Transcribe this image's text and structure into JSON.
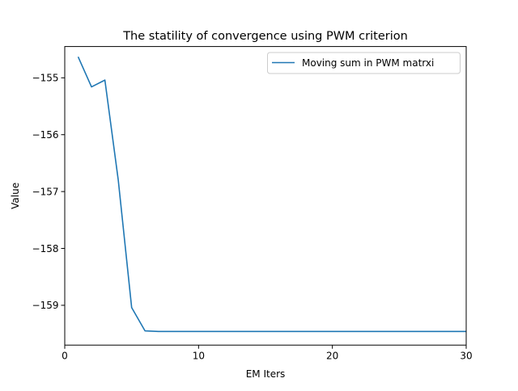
{
  "chart_data": {
    "type": "line",
    "title": "The statility of convergence using PWM criterion",
    "xlabel": "EM Iters",
    "ylabel": "Value",
    "xlim": [
      0,
      30
    ],
    "ylim": [
      -159.7,
      -154.45
    ],
    "xticks": [
      0,
      10,
      20,
      30
    ],
    "yticks": [
      -155,
      -156,
      -157,
      -158,
      -159
    ],
    "ytick_labels": [
      "−155",
      "−156",
      "−157",
      "−158",
      "−159"
    ],
    "grid": false,
    "legend_position": "top-right",
    "series": [
      {
        "name": "Moving sum in PWM matrxi",
        "color": "#1f77b4",
        "x": [
          1,
          2,
          3,
          4,
          5,
          6,
          7,
          8,
          9,
          10,
          11,
          12,
          13,
          14,
          15,
          16,
          17,
          18,
          19,
          20,
          21,
          22,
          23,
          24,
          25,
          26,
          27,
          28,
          29,
          30
        ],
        "values": [
          -154.63,
          -155.16,
          -155.04,
          -156.8,
          -159.04,
          -159.45,
          -159.46,
          -159.46,
          -159.46,
          -159.46,
          -159.46,
          -159.46,
          -159.46,
          -159.46,
          -159.46,
          -159.46,
          -159.46,
          -159.46,
          -159.46,
          -159.46,
          -159.46,
          -159.46,
          -159.46,
          -159.46,
          -159.46,
          -159.46,
          -159.46,
          -159.46,
          -159.46,
          -159.46
        ]
      }
    ]
  }
}
